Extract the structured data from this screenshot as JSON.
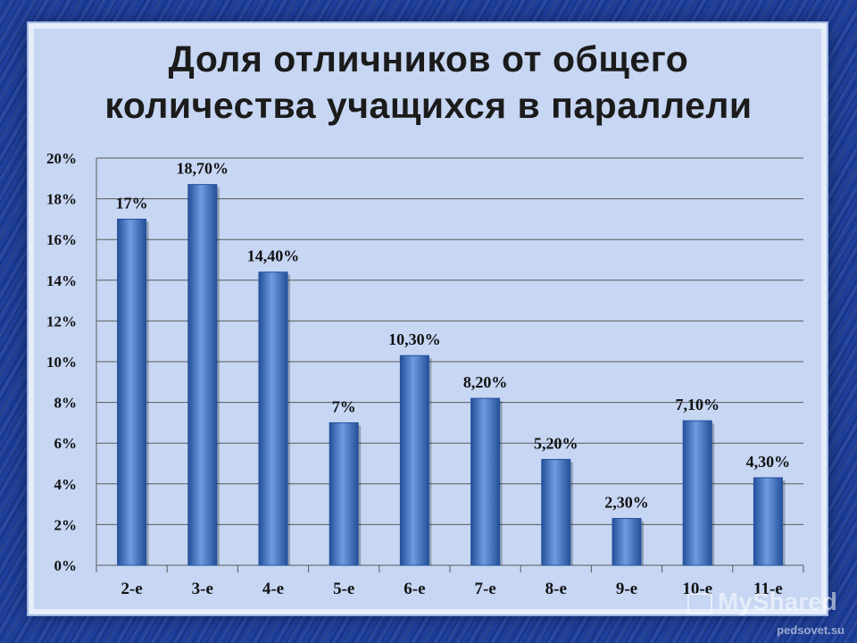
{
  "title_lines": [
    "Доля отличников от общего",
    "количества учащихся в параллели"
  ],
  "watermark": "MyShared",
  "source": "pedsovet.su",
  "colors": {
    "bar": "#3b73c4",
    "bar_highlight": "#6f9ce0",
    "bar_dark": "#23509a",
    "grid": "#5a5a5a"
  },
  "chart_data": {
    "type": "bar",
    "categories": [
      "2-е",
      "3-е",
      "4-е",
      "5-е",
      "6-е",
      "7-е",
      "8-е",
      "9-е",
      "10-е",
      "11-е"
    ],
    "values": [
      17,
      18.7,
      14.4,
      7,
      10.3,
      8.2,
      5.2,
      2.3,
      7.1,
      4.3
    ],
    "data_labels": [
      "17%",
      "18,70%",
      "14,40%",
      "7%",
      "10,30%",
      "8,20%",
      "5,20%",
      "2,30%",
      "7,10%",
      "4,30%"
    ],
    "y_ticks": [
      0,
      2,
      4,
      6,
      8,
      10,
      12,
      14,
      16,
      18,
      20
    ],
    "y_tick_labels": [
      "0%",
      "2%",
      "4%",
      "6%",
      "8%",
      "10%",
      "12%",
      "14%",
      "16%",
      "18%",
      "20%"
    ],
    "ylim": [
      0,
      20
    ],
    "grid": true,
    "legend": "none"
  }
}
